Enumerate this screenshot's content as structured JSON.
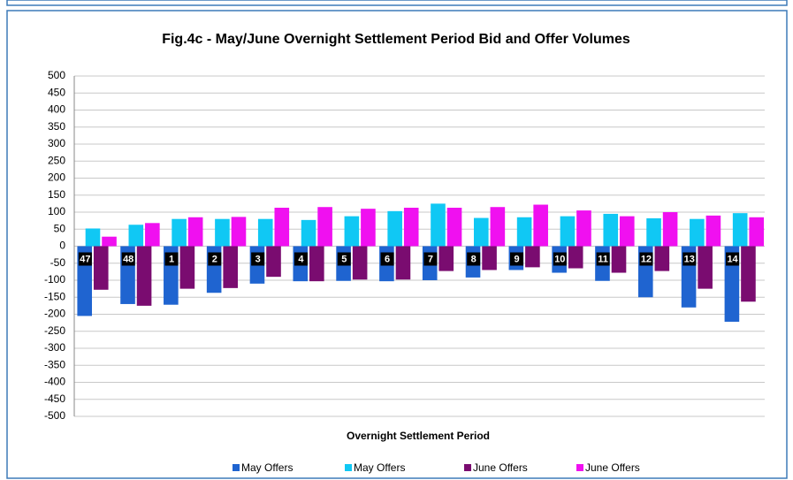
{
  "chart_data": {
    "type": "bar",
    "title": "Fig.4c - May/June Overnight Settlement Period Bid and Offer Volumes",
    "x_label": "Overnight Settlement Period",
    "categories": [
      "47",
      "48",
      "1",
      "2",
      "3",
      "4",
      "5",
      "6",
      "7",
      "8",
      "9",
      "10",
      "11",
      "12",
      "13",
      "14"
    ],
    "series": [
      {
        "name": "May Offers",
        "color": "#1f64d0",
        "values": [
          -205,
          -170,
          -172,
          -137,
          -110,
          -103,
          -102,
          -103,
          -100,
          -92,
          -70,
          -78,
          -102,
          -150,
          -180,
          -222
        ]
      },
      {
        "name": "May Offers",
        "color": "#10c8f4",
        "values": [
          52,
          63,
          80,
          80,
          80,
          77,
          88,
          103,
          125,
          83,
          85,
          88,
          95,
          82,
          80,
          97
        ]
      },
      {
        "name": "June Offers",
        "color": "#7a0c70",
        "values": [
          -128,
          -175,
          -125,
          -123,
          -90,
          -103,
          -98,
          -98,
          -73,
          -70,
          -62,
          -65,
          -78,
          -73,
          -125,
          -163
        ]
      },
      {
        "name": "June Offers",
        "color": "#f010f0",
        "values": [
          28,
          68,
          85,
          86,
          113,
          115,
          110,
          113,
          113,
          115,
          122,
          105,
          88,
          100,
          90,
          85
        ]
      }
    ],
    "ylim": [
      -500,
      500
    ],
    "yticks": [
      -500,
      -450,
      -400,
      -350,
      -300,
      -250,
      -200,
      -150,
      -100,
      -50,
      0,
      50,
      100,
      150,
      200,
      250,
      300,
      350,
      400,
      450,
      500
    ],
    "grid": true,
    "legend": "bottom"
  }
}
